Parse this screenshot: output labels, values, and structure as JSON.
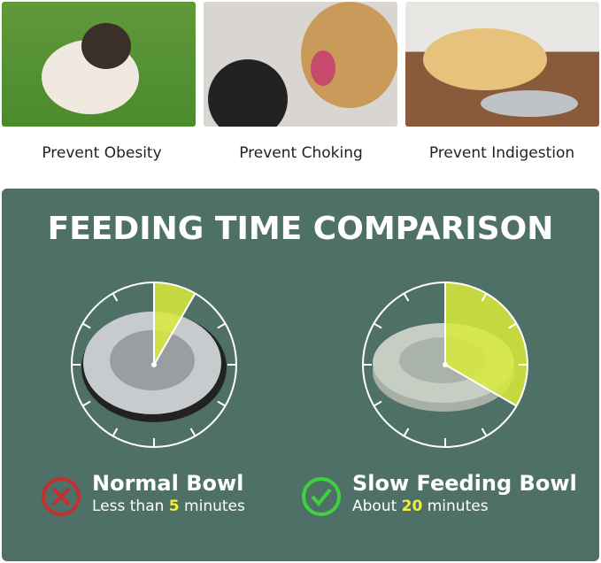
{
  "benefits": [
    {
      "caption": "Prevent Obesity",
      "image": "pug on grass"
    },
    {
      "caption": "Prevent Choking",
      "image": "dog mouth being checked"
    },
    {
      "caption": "Prevent Indigestion",
      "image": "dog lying by bowl"
    }
  ],
  "comparison": {
    "title": "FEEDING TIME COMPARISON",
    "normal": {
      "name": "Normal Bowl",
      "pre": "Less than ",
      "value": "5",
      "post": " minutes",
      "minutes": 5,
      "icon": "x-circle-icon",
      "color": "#c62f2f"
    },
    "slow": {
      "name": "Slow Feeding Bowl",
      "pre": "About ",
      "value": "20",
      "post": " minutes",
      "minutes": 20,
      "icon": "check-circle-icon",
      "color": "#3fd13f"
    }
  },
  "colors": {
    "panel": "#4f7067",
    "wedge": "#d8ea3a"
  }
}
